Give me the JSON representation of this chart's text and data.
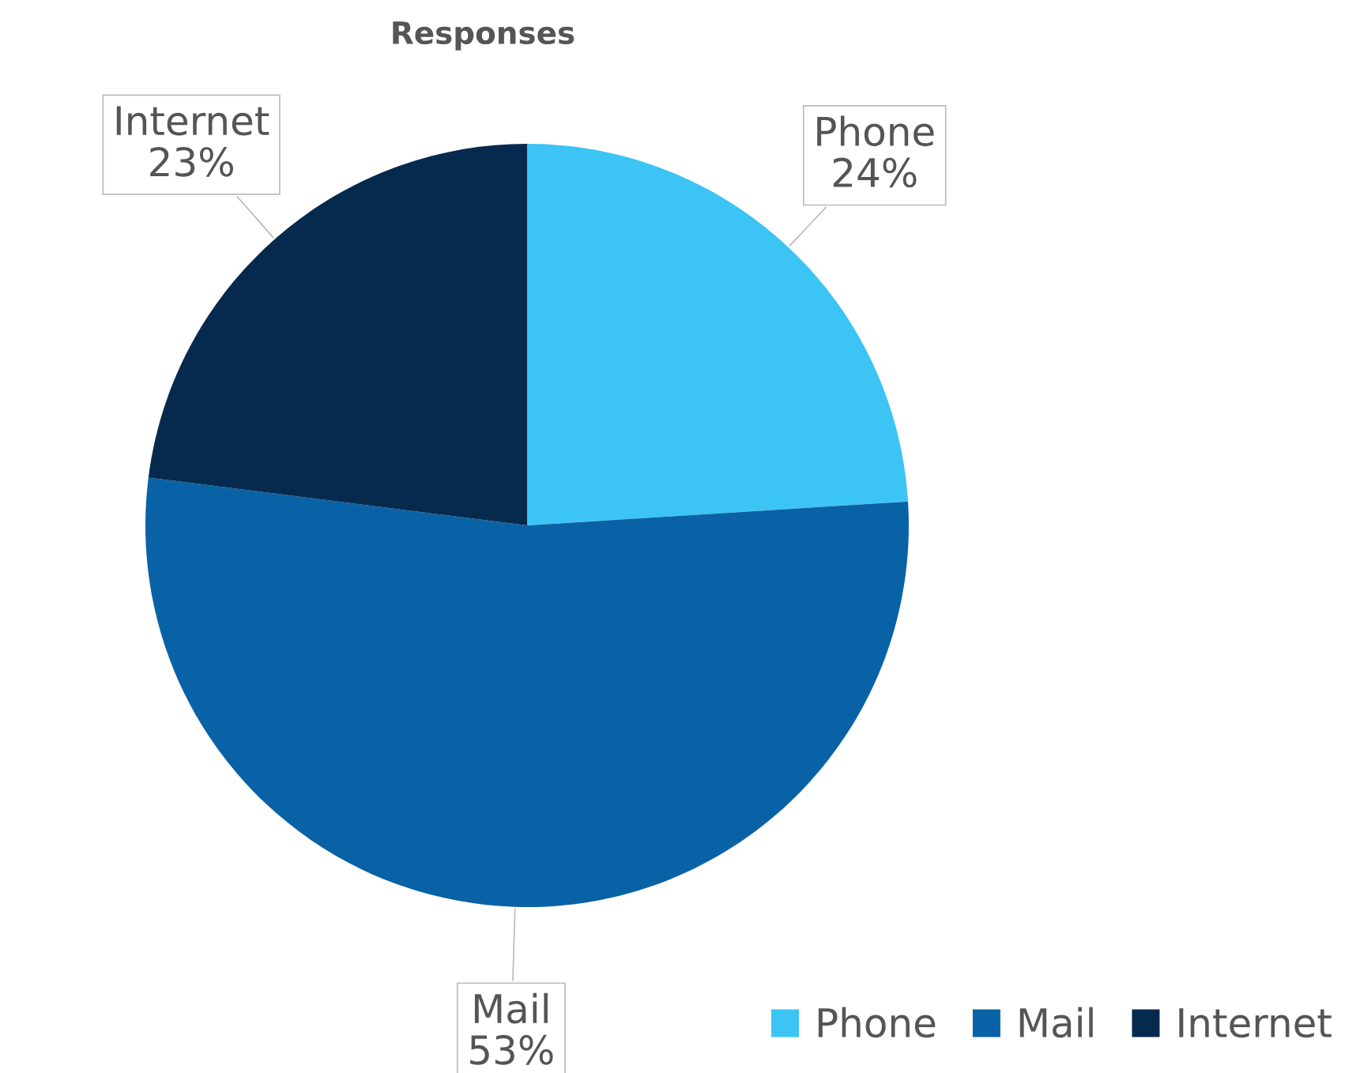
{
  "chart_data": {
    "type": "pie",
    "title": "Responses",
    "categories": [
      "Phone",
      "Mail",
      "Internet"
    ],
    "values": [
      24,
      53,
      23
    ],
    "colors": [
      "#3cc4f4",
      "#0a62a6",
      "#062a4e"
    ],
    "value_labels": [
      "24%",
      "53%",
      "23%"
    ],
    "legend": "bottom right"
  }
}
